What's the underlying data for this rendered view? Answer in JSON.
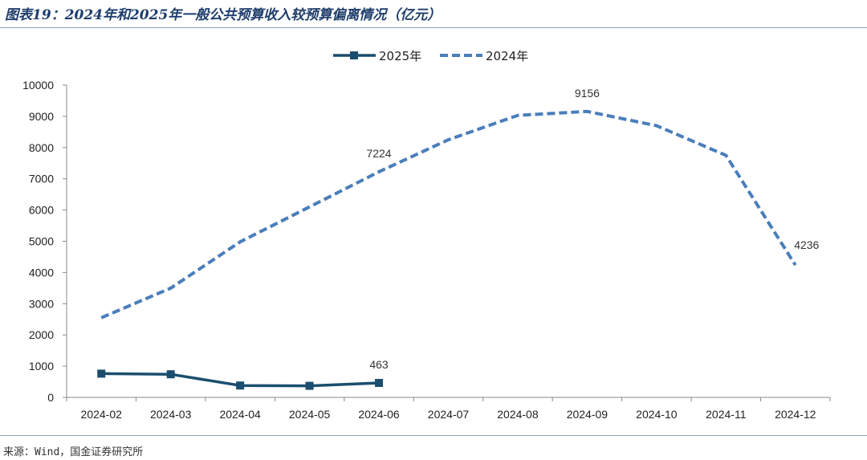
{
  "page": {
    "title": "图表19：2024年和2025年一般公共预算收入较预算偏离情况（亿元）",
    "source": "来源：Wind，国金证券研究所"
  },
  "colors": {
    "series_2025": "#1b4e6e",
    "series_2024": "#4a7ebb",
    "axis": "#888888",
    "rule": "#8fa3bf"
  },
  "chart_data": {
    "type": "line",
    "title": "图表19：2024年和2025年一般公共预算收入较预算偏离情况（亿元）",
    "categories": [
      "2024-02",
      "2024-03",
      "2024-04",
      "2024-05",
      "2024-06",
      "2024-07",
      "2024-08",
      "2024-09",
      "2024-10",
      "2024-11",
      "2024-12"
    ],
    "ylim": [
      0,
      10000
    ],
    "yticks": [
      0,
      1000,
      2000,
      3000,
      4000,
      5000,
      6000,
      7000,
      8000,
      9000,
      10000
    ],
    "grid": false,
    "legend_position": "top-center",
    "series": [
      {
        "name": "2025年",
        "style": "solid-square-markers",
        "values": [
          760,
          740,
          380,
          370,
          463,
          null,
          null,
          null,
          null,
          null,
          null
        ]
      },
      {
        "name": "2024年",
        "style": "dashed",
        "values": [
          2550,
          3500,
          4980,
          6100,
          7224,
          8250,
          9030,
          9156,
          8700,
          7750,
          4236
        ]
      }
    ],
    "data_labels": [
      {
        "series": 0,
        "index": 4,
        "text": "463"
      },
      {
        "series": 1,
        "index": 4,
        "text": "7224"
      },
      {
        "series": 1,
        "index": 7,
        "text": "9156"
      },
      {
        "series": 1,
        "index": 10,
        "text": "4236"
      }
    ]
  }
}
